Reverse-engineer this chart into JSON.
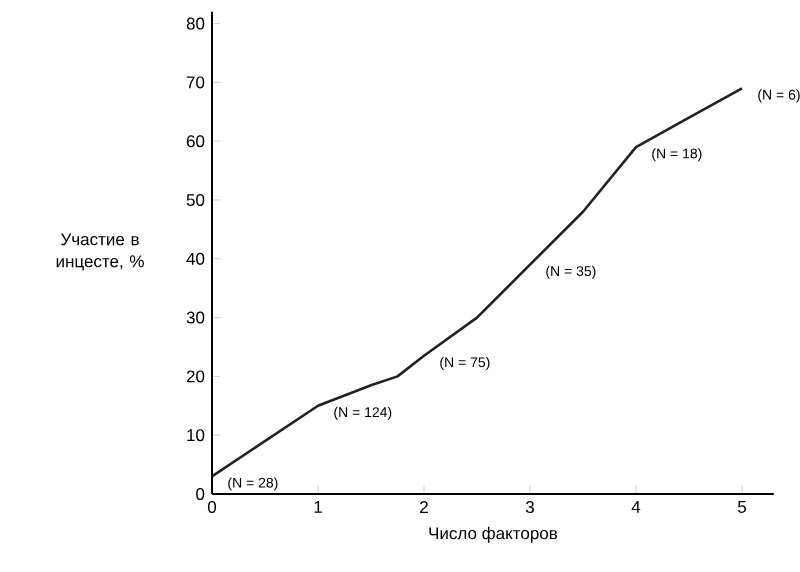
{
  "chart_data": {
    "type": "line",
    "xlabel": "Число факторов",
    "ylabel": "Участие в инцесте, %",
    "x": [
      0,
      0.5,
      1,
      1.5,
      1.75,
      2,
      2.5,
      3,
      3.5,
      4,
      4.5,
      5
    ],
    "values": [
      3,
      9,
      15,
      18.5,
      20,
      23.5,
      30,
      39,
      48,
      59,
      64,
      69
    ],
    "color": "#222222",
    "xlim": [
      0,
      5.3
    ],
    "ylim": [
      0,
      82
    ],
    "xticks": [
      0,
      1,
      2,
      3,
      4,
      5
    ],
    "yticks": [
      0,
      10,
      20,
      30,
      40,
      50,
      60,
      70,
      80
    ],
    "grid": false,
    "marker": "none",
    "line_style": "solid",
    "annotations": [
      {
        "text": "(N = 28)",
        "x": 0,
        "y": 3
      },
      {
        "text": "(N = 124)",
        "x": 1,
        "y": 15
      },
      {
        "text": "(N = 75)",
        "x": 2,
        "y": 23.5
      },
      {
        "text": "(N = 35)",
        "x": 3,
        "y": 39
      },
      {
        "text": "(N = 18)",
        "x": 4,
        "y": 59
      },
      {
        "text": "(N = 6)",
        "x": 5,
        "y": 69
      }
    ]
  }
}
